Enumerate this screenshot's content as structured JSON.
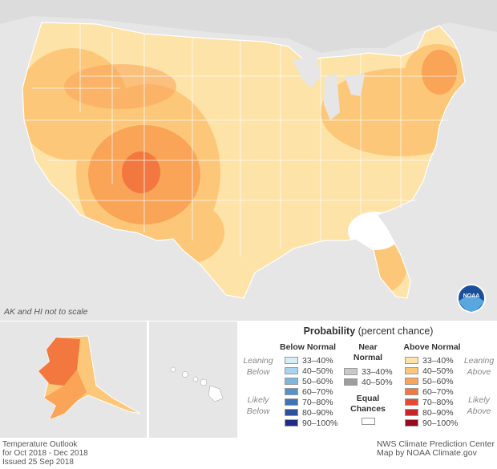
{
  "map": {
    "scale_note": "AK and HI not to scale",
    "logo_text": "NOAA"
  },
  "legend": {
    "title_bold": "Probability",
    "title_rest": " (percent chance)",
    "below_header": "Below Normal",
    "near_header": "Near\nNormal",
    "above_header": "Above Normal",
    "equal_label": "Equal\nChances",
    "leaning_below": "Leaning\nBelow",
    "likely_below": "Likely\nBelow",
    "leaning_above": "Leaning\nAbove",
    "likely_above": "Likely\nAbove",
    "below": [
      {
        "label": "33–40%",
        "color": "#d6ecf7"
      },
      {
        "label": "40–50%",
        "color": "#a9d3ee"
      },
      {
        "label": "50–60%",
        "color": "#7fb6e0"
      },
      {
        "label": "60–70%",
        "color": "#5593cc"
      },
      {
        "label": "70–80%",
        "color": "#3f73b7"
      },
      {
        "label": "80–90%",
        "color": "#2c4f9e"
      },
      {
        "label": "90–100%",
        "color": "#1f2b84"
      }
    ],
    "near": [
      {
        "label": "33–40%",
        "color": "#c8c8c8"
      },
      {
        "label": "40–50%",
        "color": "#9e9e9e"
      }
    ],
    "above": [
      {
        "label": "33–40%",
        "color": "#fde3a7"
      },
      {
        "label": "40–50%",
        "color": "#fdc77a"
      },
      {
        "label": "50–60%",
        "color": "#f9a457"
      },
      {
        "label": "60–70%",
        "color": "#f3783f"
      },
      {
        "label": "70–80%",
        "color": "#e34a33"
      },
      {
        "label": "80–90%",
        "color": "#c6262b"
      },
      {
        "label": "90–100%",
        "color": "#960a1f"
      }
    ],
    "equal_color": "#ffffff"
  },
  "footer": {
    "left_line1": "Temperature Outlook",
    "left_line2": "for Oct 2018 - Dec 2018",
    "left_line3": "Issued 25 Sep 2018",
    "right_line1": "NWS Climate Prediction Center",
    "right_line2": "Map by NOAA Climate.gov"
  }
}
